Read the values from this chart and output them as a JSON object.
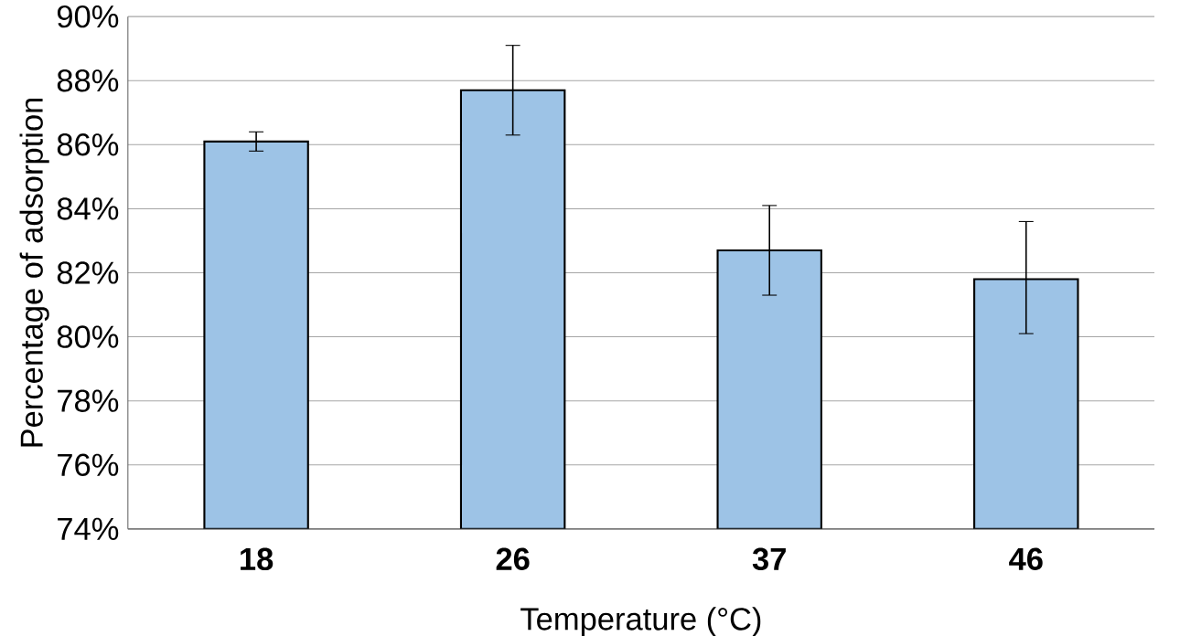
{
  "chart_data": {
    "type": "bar",
    "xlabel": "Temperature (°C)",
    "ylabel": "Percentage  of adsorption",
    "categories": [
      "18",
      "26",
      "37",
      "46"
    ],
    "values": [
      86.1,
      87.7,
      82.7,
      81.8
    ],
    "errors": [
      0.3,
      1.4,
      1.4,
      [
        80.1,
        83.6
      ]
    ],
    "color": "#9dc3e6",
    "ylim": [
      74,
      90
    ],
    "yticks": [
      {
        "value": 74,
        "label": "74%"
      },
      {
        "value": 76,
        "label": "76%"
      },
      {
        "value": 78,
        "label": "78%"
      },
      {
        "value": 80,
        "label": "80%"
      },
      {
        "value": 82,
        "label": "82%"
      },
      {
        "value": 84,
        "label": "84%"
      },
      {
        "value": 86,
        "label": "86%"
      },
      {
        "value": 88,
        "label": "88%"
      },
      {
        "value": 90,
        "label": "90%"
      }
    ],
    "grid": "y"
  }
}
